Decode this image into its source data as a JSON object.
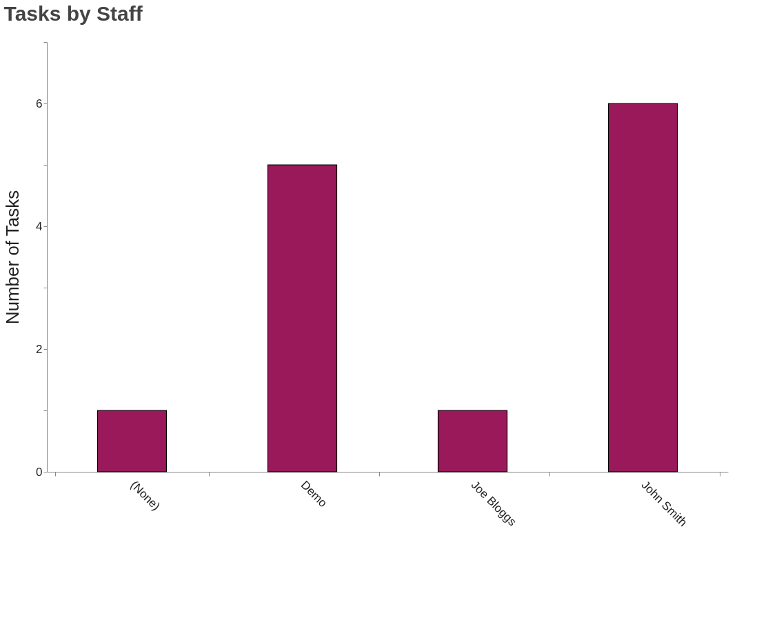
{
  "chart_data": {
    "type": "bar",
    "title": "Tasks by Staff",
    "ylabel": "Number of Tasks",
    "categories": [
      "(None)",
      "Demo",
      "Joe Bloggs",
      "John Smith"
    ],
    "values": [
      1,
      5,
      1,
      6
    ],
    "color": "#99195a",
    "ylim": [
      0,
      7
    ],
    "yticks": [
      0,
      {
        "value": 1,
        "label": null
      },
      2,
      {
        "value": 3,
        "label": null
      },
      4,
      {
        "value": 5,
        "label": null
      },
      6,
      {
        "value": 7,
        "label": null
      }
    ],
    "grid": false
  }
}
